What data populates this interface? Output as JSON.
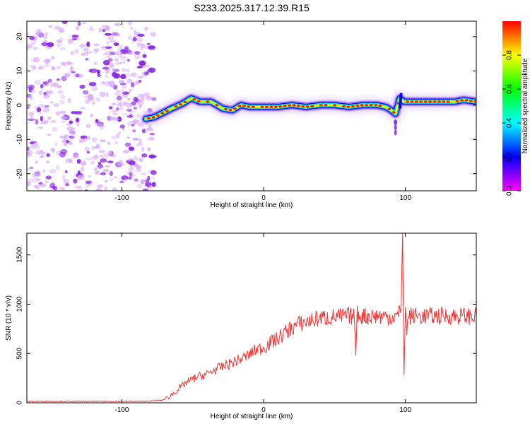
{
  "figure_title": "S233.2025.317.12.39.R15",
  "chart_data": [
    {
      "type": "heatmap",
      "title": "S233.2025.317.12.39.R15",
      "xlabel": "Height of straight line (km)",
      "ylabel": "Frequency (Hz)",
      "xlim": [
        -167,
        150
      ],
      "ylim": [
        -25,
        24.5
      ],
      "x_ticks": [
        -100,
        0,
        100
      ],
      "y_ticks": [
        -20,
        -10,
        0,
        10,
        20
      ],
      "grid": false,
      "ridge_center_hz": {
        "x": [
          -83,
          -77,
          -65,
          -57,
          -51,
          -45,
          -37,
          -29,
          -22,
          -16,
          -10,
          0,
          10,
          20,
          30,
          40,
          50,
          60,
          70,
          80,
          86,
          90,
          93,
          96,
          99,
          105,
          115,
          125,
          135,
          141,
          150
        ],
        "y": [
          -4,
          -3.5,
          -1,
          0.5,
          2,
          1,
          1,
          -1,
          -1.5,
          0,
          -0.5,
          -0.5,
          -0.5,
          0,
          -0.5,
          0,
          0,
          -0.5,
          0,
          0,
          -0.5,
          -1.5,
          -2.5,
          2,
          1,
          1,
          1,
          1,
          1,
          1.5,
          1
        ]
      },
      "colorbar": {
        "label": "Normalized spectral amplitude",
        "range": [
          0,
          1
        ],
        "ticks": [
          0.0,
          0.2,
          0.4,
          0.6,
          0.8
        ],
        "tick_labels": [
          "0.0",
          "0.2",
          "0.4",
          "0.6",
          "0.8"
        ],
        "colors": [
          "#ff00ff",
          "#0000ff",
          "#00ffff",
          "#00ff00",
          "#ffff00",
          "#ff0000"
        ]
      }
    },
    {
      "type": "line",
      "xlabel": "Height of straight line (km)",
      "ylabel": "SNR (10 * v/v)",
      "xlim": [
        -167,
        150
      ],
      "ylim": [
        0,
        1720
      ],
      "x_ticks": [
        -100,
        0,
        100
      ],
      "y_ticks": [
        0,
        500,
        1000,
        1500
      ],
      "grid": false,
      "series": [
        {
          "color": "#ee3333",
          "x": [
            -167,
            -140,
            -110,
            -90,
            -80,
            -72,
            -68,
            -64,
            -60,
            -55,
            -50,
            -45,
            -40,
            -35,
            -30,
            -25,
            -20,
            -15,
            -10,
            -5,
            0,
            5,
            10,
            15,
            20,
            25,
            30,
            35,
            40,
            50,
            60,
            64,
            65,
            66,
            70,
            80,
            90,
            95,
            97,
            98,
            99,
            100,
            101,
            102,
            110,
            120,
            130,
            140,
            150
          ],
          "y": [
            15,
            15,
            15,
            15,
            18,
            25,
            45,
            90,
            140,
            200,
            240,
            270,
            290,
            330,
            360,
            390,
            420,
            450,
            490,
            540,
            560,
            610,
            650,
            710,
            760,
            800,
            820,
            840,
            860,
            870,
            880,
            880,
            480,
            900,
            880,
            880,
            870,
            880,
            1000,
            1720,
            280,
            1000,
            700,
            880,
            880,
            880,
            880,
            880,
            880
          ]
        }
      ]
    }
  ]
}
